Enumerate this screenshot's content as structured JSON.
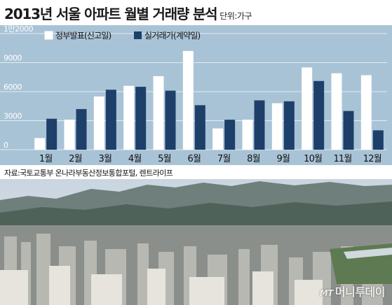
{
  "title": "2013년 서울 아파트 월별 거래량 분석",
  "unit_label": "단위:가구",
  "source": "자료:국토교통부 온나라부동산정보통합포털, 렌트라이프",
  "watermark": {
    "logo": "MT",
    "text": "머니투데이"
  },
  "colors": {
    "panel": "#a9c3d6",
    "declared": "#ffffff",
    "contract": "#1d3f6a",
    "grid": "#ffffff"
  },
  "chart_data": {
    "type": "bar",
    "categories": [
      "1월",
      "2월",
      "3월",
      "4월",
      "5월",
      "6월",
      "7월",
      "8월",
      "9월",
      "10월",
      "11월",
      "12월"
    ],
    "series": [
      {
        "name": "정부발표(신고일)",
        "values": [
          1200,
          3100,
          5500,
          6600,
          7600,
          10200,
          2200,
          3100,
          4800,
          8500,
          7900,
          7700
        ]
      },
      {
        "name": "실거래가(계약일)",
        "values": [
          3200,
          4200,
          6200,
          6500,
          6100,
          4600,
          3100,
          5100,
          5000,
          7100,
          4000,
          2000
        ]
      }
    ],
    "ylim": [
      0,
      12000
    ],
    "yticks": [
      0,
      3000,
      6000,
      9000,
      12000
    ],
    "ytick_labels": [
      "0",
      "3000",
      "6000",
      "9000",
      "1만2000"
    ],
    "grid": true,
    "legend_position": "top-left"
  }
}
